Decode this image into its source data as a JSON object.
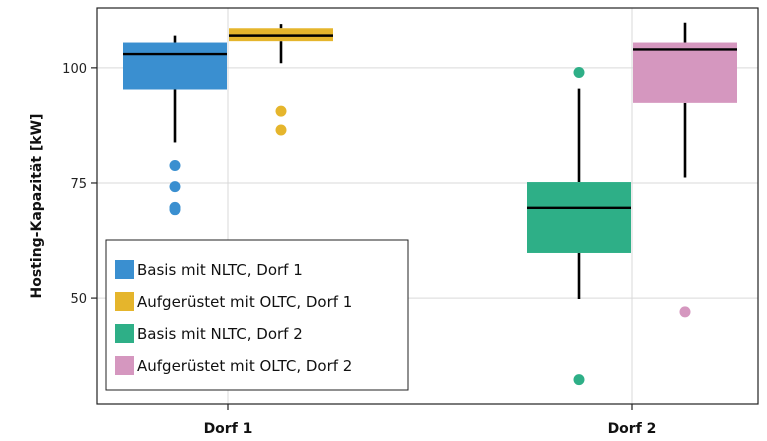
{
  "chart_data": {
    "type": "box",
    "title": "",
    "xlabel": "",
    "ylabel": "Hosting-Kapazität [kW]",
    "ylim": [
      27,
      113
    ],
    "yticks": [
      50,
      75,
      100
    ],
    "categories": [
      "Dorf 1",
      "Dorf 2"
    ],
    "grid": true,
    "legend_position": "bottom-left",
    "series": [
      {
        "name": "Basis mit NLTC, Dorf 1",
        "category": "Dorf 1",
        "color": "#3A8FD0",
        "q1": 95.3,
        "median": 103.0,
        "q3": 105.5,
        "whisker_low": 83.8,
        "whisker_high": 107.0,
        "outliers": [
          78.8,
          74.2,
          69.7,
          69.2
        ]
      },
      {
        "name": "Aufgerüstet mit OLTC, Dorf 1",
        "category": "Dorf 1",
        "color": "#E5B52C",
        "q1": 105.8,
        "median": 107.0,
        "q3": 108.6,
        "whisker_low": 101.0,
        "whisker_high": 109.5,
        "outliers": [
          90.6,
          86.5
        ]
      },
      {
        "name": "Basis mit NLTC, Dorf 2",
        "category": "Dorf 2",
        "color": "#2EAF87",
        "q1": 59.8,
        "median": 69.6,
        "q3": 75.2,
        "whisker_low": 49.8,
        "whisker_high": 95.5,
        "outliers": [
          99.0,
          32.3
        ]
      },
      {
        "name": "Aufgerüstet mit OLTC, Dorf 2",
        "category": "Dorf 2",
        "color": "#D597BF",
        "q1": 92.4,
        "median": 104.0,
        "q3": 105.5,
        "whisker_low": 76.2,
        "whisker_high": 109.8,
        "outliers": [
          47.0
        ]
      }
    ]
  }
}
